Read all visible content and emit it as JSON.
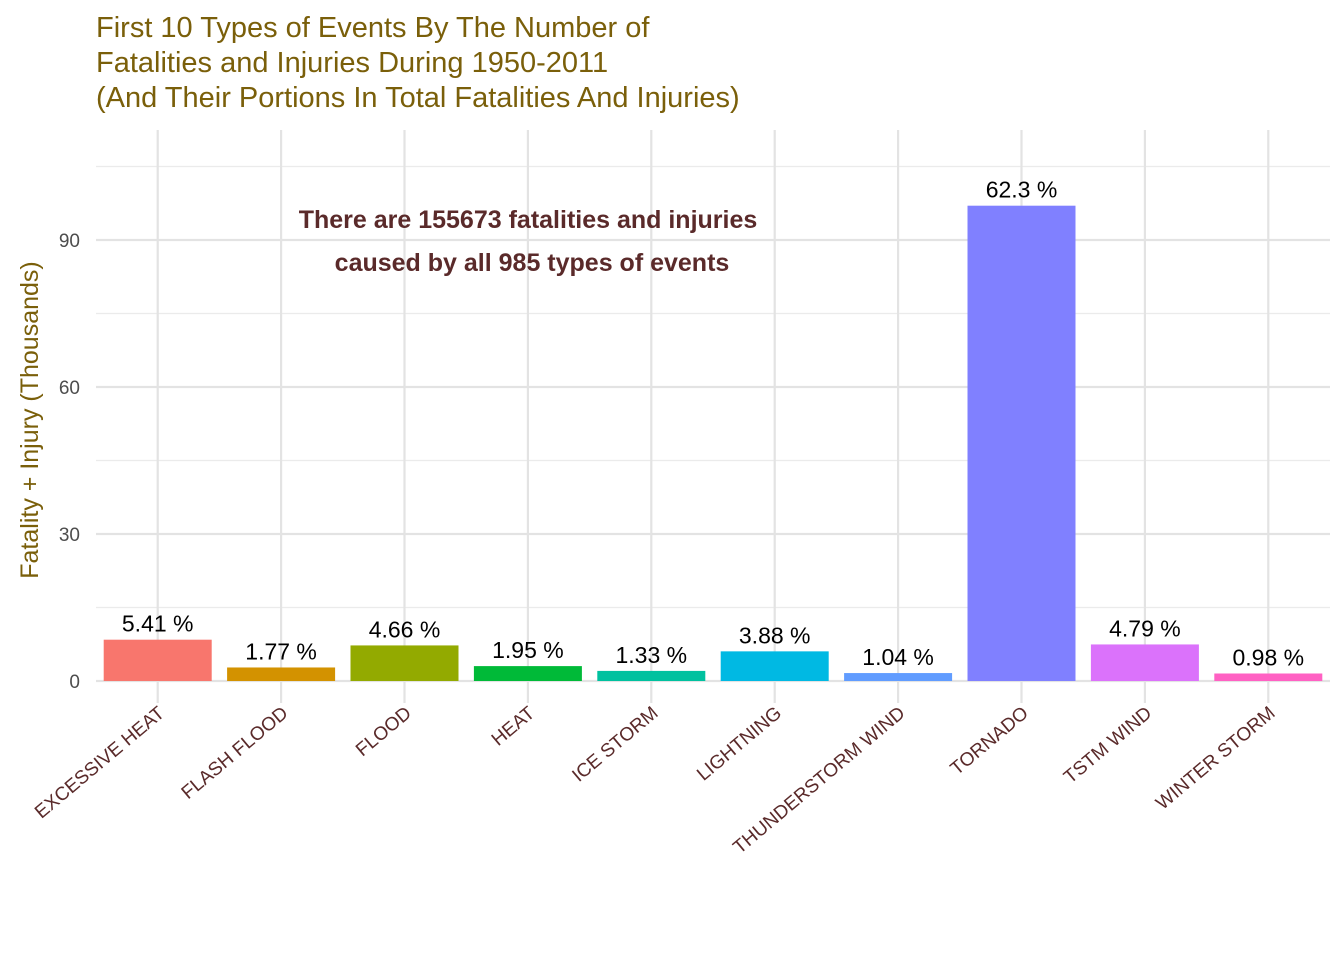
{
  "chart_data": {
    "type": "bar",
    "title": [
      "First 10 Types of Events By The Number of",
      "Fatalities and Injuries During 1950-2011",
      "(And Their Portions In Total Fatalities And Injuries)"
    ],
    "ylabel": "Fatality + Injury (Thousands)",
    "xlabel": "",
    "ylim": [
      0,
      110
    ],
    "yticks": [
      0,
      30,
      60,
      90
    ],
    "grid": true,
    "legend": "none",
    "categories": [
      "EXCESSIVE HEAT",
      "FLASH FLOOD",
      "FLOOD",
      "HEAT",
      "ICE STORM",
      "LIGHTNING",
      "THUNDERSTORM WIND",
      "TORNADO",
      "TSTM WIND",
      "WINTER STORM"
    ],
    "values": [
      8.43,
      2.76,
      7.26,
      3.04,
      2.06,
      6.05,
      1.62,
      97.0,
      7.46,
      1.53
    ],
    "labels": [
      "5.41 %",
      "1.77 %",
      "4.66 %",
      "1.95 %",
      "1.33 %",
      "3.88 %",
      "1.04 %",
      "62.3 %",
      "4.79 %",
      "0.98 %"
    ],
    "colors": [
      "#F8766D",
      "#D39200",
      "#93AA00",
      "#00BA38",
      "#00C19F",
      "#00B9E3",
      "#619CFF",
      "#8080FF",
      "#DB72FB",
      "#FF61C3"
    ],
    "annotation": [
      "There are 155673 fatalities and injuries",
      "caused by all 985 types of events"
    ],
    "title_color": "#7A5F0A",
    "axis_label_color": "#7A5F0A",
    "tick_label_color": "#5A2A2A",
    "annotation_color": "#5A2A2A"
  }
}
